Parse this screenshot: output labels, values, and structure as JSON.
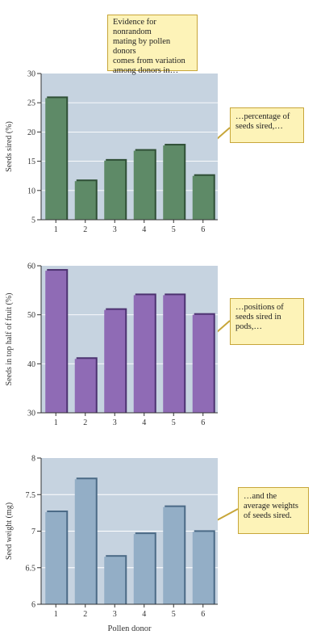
{
  "header_callout": "Evidence for nonrandom\nmating by pollen donors\ncomes from variation\namong donors in…",
  "chart_data": [
    {
      "type": "bar",
      "categories": [
        "1",
        "2",
        "3",
        "4",
        "5",
        "6"
      ],
      "values": [
        25.8,
        11.6,
        15.1,
        16.8,
        17.7,
        12.5
      ],
      "ylabel": "Seeds sired (%)",
      "xlabel": "",
      "ylim": [
        5,
        30
      ],
      "yticks": [
        5,
        10,
        15,
        20,
        25,
        30
      ],
      "bar_color": "#5e8a67",
      "bar_shadow": "#2f4f36",
      "background": "#c6d3e0",
      "grid": true,
      "callout": "…percentage of\nseeds sired,…"
    },
    {
      "type": "bar",
      "categories": [
        "1",
        "2",
        "3",
        "4",
        "5",
        "6"
      ],
      "values": [
        59,
        41,
        51,
        54,
        54,
        50
      ],
      "ylabel": "Seeds in top half of fruit (%)",
      "xlabel": "",
      "ylim": [
        30,
        60
      ],
      "yticks": [
        30,
        40,
        50,
        60
      ],
      "bar_color": "#8f6bb5",
      "bar_shadow": "#4c3270",
      "background": "#c6d3e0",
      "grid": true,
      "callout": "…positions of\nseeds sired in\npods,…"
    },
    {
      "type": "bar",
      "categories": [
        "1",
        "2",
        "3",
        "4",
        "5",
        "6"
      ],
      "values": [
        7.26,
        7.71,
        6.65,
        6.96,
        7.33,
        6.99
      ],
      "ylabel": "Seed weight (mg)",
      "xlabel": "Pollen donor",
      "ylim": [
        6,
        8
      ],
      "yticks": [
        6,
        6.5,
        7,
        7.5,
        8
      ],
      "bar_color": "#93aec6",
      "bar_shadow": "#4b6a86",
      "background": "#c6d3e0",
      "grid": true,
      "callout": "…and the\naverage weights\nof seeds sired."
    }
  ]
}
